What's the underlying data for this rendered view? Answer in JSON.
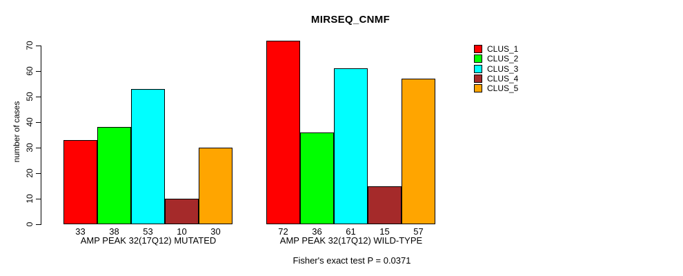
{
  "title": "MIRSEQ_CNMF",
  "footer": "Fisher's exact test P = 0.0371",
  "y_axis": {
    "label": "number of cases",
    "ticks": [
      0,
      10,
      20,
      30,
      40,
      50,
      60,
      70
    ]
  },
  "chart_data": {
    "type": "bar",
    "title": "MIRSEQ_CNMF",
    "xlabel": "",
    "ylabel": "number of cases",
    "ylim": [
      0,
      70
    ],
    "grid": false,
    "legend_position": "top-right",
    "categories": [
      "CLUS_1",
      "CLUS_2",
      "CLUS_3",
      "CLUS_4",
      "CLUS_5"
    ],
    "colors": [
      "#FF0000",
      "#00FF00",
      "#00FFFF",
      "#A52A2A",
      "#FFA500"
    ],
    "groups": [
      {
        "label": "AMP PEAK 32(17Q12) MUTATED",
        "values": [
          33,
          38,
          53,
          10,
          30
        ]
      },
      {
        "label": "AMP PEAK 32(17Q12) WILD-TYPE",
        "values": [
          72,
          36,
          61,
          15,
          57
        ]
      }
    ],
    "annotation": "Fisher's exact test P = 0.0371"
  }
}
